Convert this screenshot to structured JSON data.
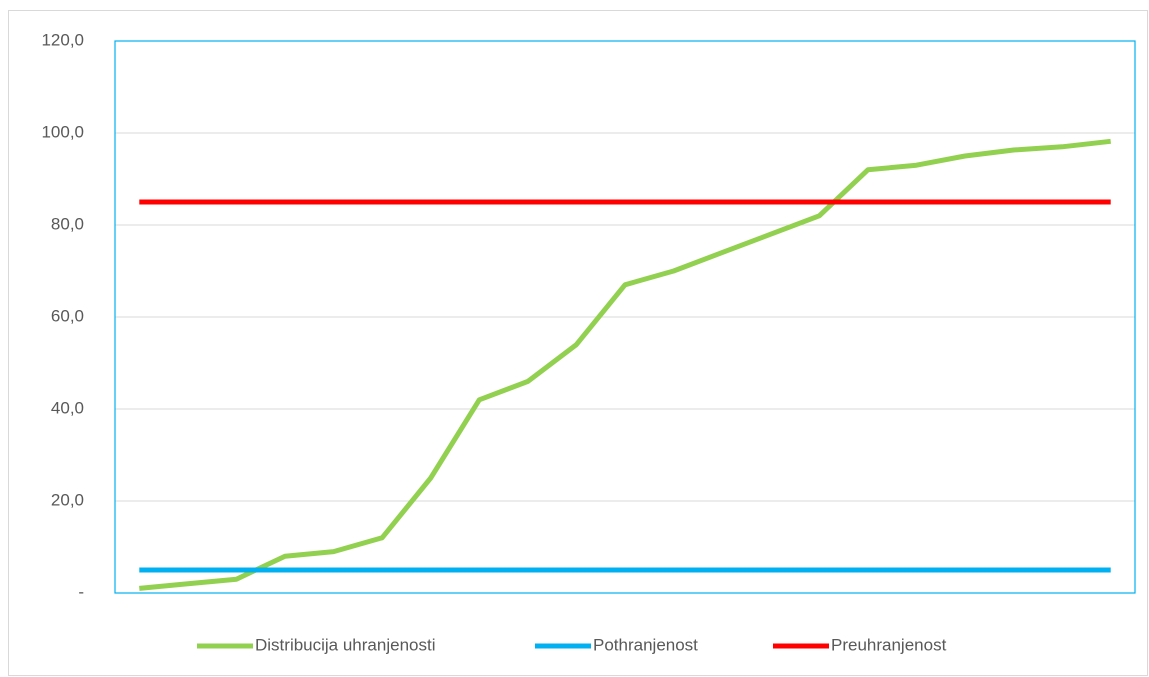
{
  "chart_data": {
    "type": "line",
    "categories": [
      null,
      null,
      null,
      null,
      null,
      null,
      null,
      null,
      null,
      null,
      null,
      null,
      null,
      null,
      null,
      null,
      null,
      null,
      null,
      null,
      null
    ],
    "series": [
      {
        "name": "Distribucija uhranjenosti",
        "color": "#92d050",
        "values": [
          1,
          2,
          3,
          8,
          9,
          12,
          25,
          42,
          46,
          54,
          67,
          70,
          74,
          78,
          82,
          92,
          93,
          95,
          96.3,
          97,
          98.2
        ]
      },
      {
        "name": "Pothranjenost",
        "color": "#00b0f0",
        "values": [
          5,
          5,
          5,
          5,
          5,
          5,
          5,
          5,
          5,
          5,
          5,
          5,
          5,
          5,
          5,
          5,
          5,
          5,
          5,
          5,
          5
        ]
      },
      {
        "name": "Preuhranjenost",
        "color": "#ff0000",
        "values": [
          85,
          85,
          85,
          85,
          85,
          85,
          85,
          85,
          85,
          85,
          85,
          85,
          85,
          85,
          85,
          85,
          85,
          85,
          85,
          85,
          85
        ]
      }
    ],
    "ylim": [
      0,
      120
    ],
    "yticks": [
      {
        "value": 0,
        "label": "-"
      },
      {
        "value": 20,
        "label": "20,0"
      },
      {
        "value": 40,
        "label": "40,0"
      },
      {
        "value": 60,
        "label": "60,0"
      },
      {
        "value": 80,
        "label": "80,0"
      },
      {
        "value": 100,
        "label": "100,0"
      },
      {
        "value": 120,
        "label": "120,0"
      }
    ],
    "grid": true,
    "legend": "bottom"
  }
}
